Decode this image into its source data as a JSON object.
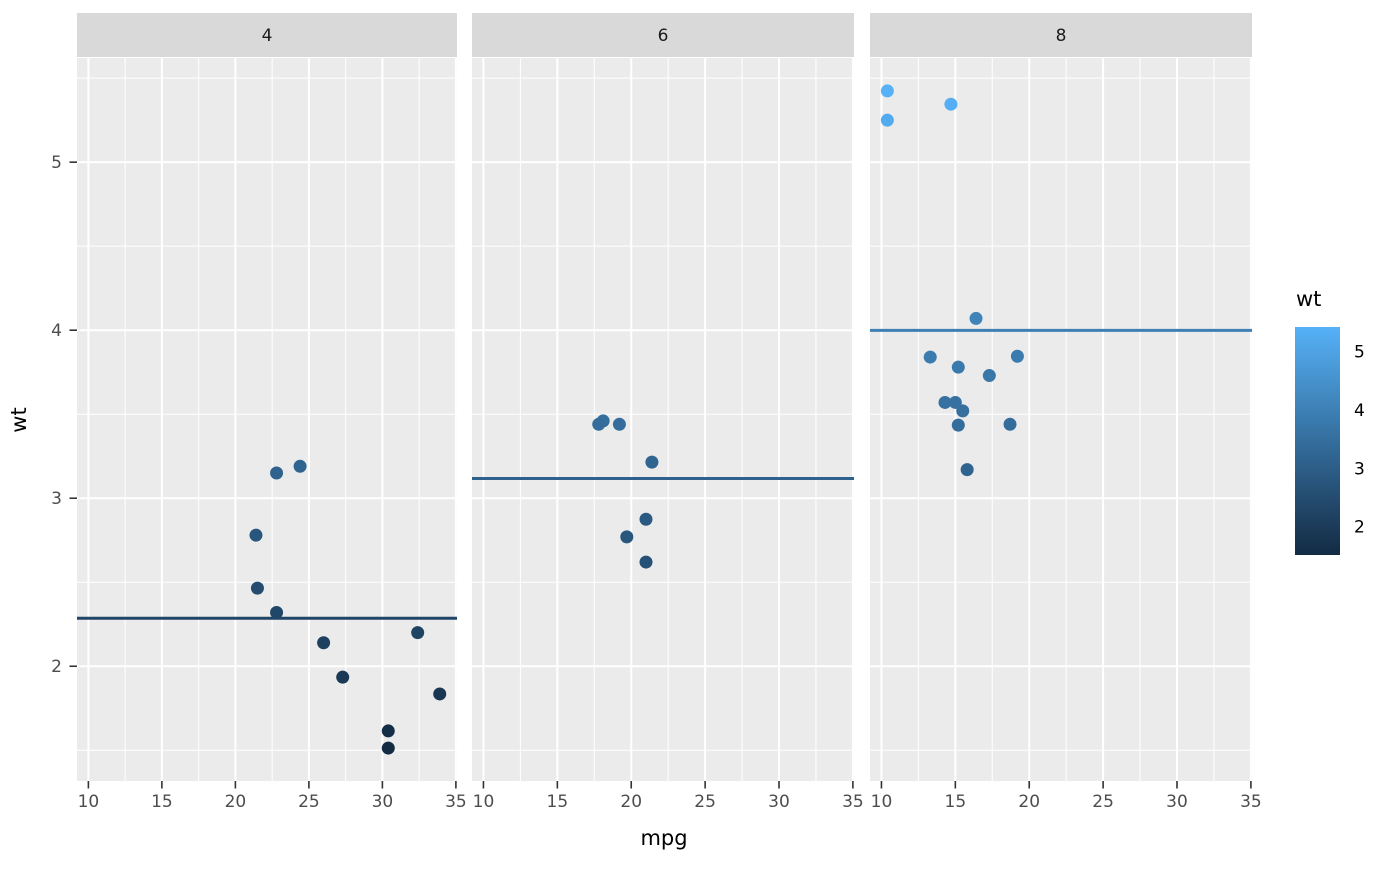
{
  "chart_data": {
    "type": "scatter",
    "title": "",
    "xlabel": "mpg",
    "ylabel": "wt",
    "x_range": [
      9.225,
      35.075
    ],
    "y_range": [
      1.317,
      5.62
    ],
    "x_ticks": [
      10,
      15,
      20,
      25,
      30,
      35
    ],
    "y_ticks": [
      2,
      3,
      4,
      5
    ],
    "x_minor_ticks": [
      12.5,
      17.5,
      22.5,
      27.5,
      32.5
    ],
    "y_minor_ticks": [
      1.5,
      2.5,
      3.5,
      4.5,
      5.5
    ],
    "grid": true,
    "facet_variable_values": [
      "4",
      "6",
      "8"
    ],
    "facets": [
      {
        "label": "4",
        "mean_line_y": 2.2857,
        "points": [
          [
            22.8,
            2.32
          ],
          [
            24.4,
            3.19
          ],
          [
            22.8,
            3.15
          ],
          [
            32.4,
            2.2
          ],
          [
            30.4,
            1.615
          ],
          [
            33.9,
            1.835
          ],
          [
            21.5,
            2.465
          ],
          [
            27.3,
            1.935
          ],
          [
            26.0,
            2.14
          ],
          [
            30.4,
            1.513
          ],
          [
            21.4,
            2.78
          ]
        ]
      },
      {
        "label": "6",
        "mean_line_y": 3.1171,
        "points": [
          [
            21.0,
            2.62
          ],
          [
            21.0,
            2.875
          ],
          [
            21.4,
            3.215
          ],
          [
            18.1,
            3.46
          ],
          [
            19.2,
            3.44
          ],
          [
            17.8,
            3.44
          ],
          [
            19.7,
            2.77
          ]
        ]
      },
      {
        "label": "8",
        "mean_line_y": 3.9992,
        "points": [
          [
            18.7,
            3.44
          ],
          [
            14.3,
            3.57
          ],
          [
            16.4,
            4.07
          ],
          [
            17.3,
            3.73
          ],
          [
            15.2,
            3.78
          ],
          [
            10.4,
            5.25
          ],
          [
            10.4,
            5.424
          ],
          [
            14.7,
            5.345
          ],
          [
            15.5,
            3.52
          ],
          [
            15.2,
            3.435
          ],
          [
            13.3,
            3.84
          ],
          [
            19.2,
            3.845
          ],
          [
            15.8,
            3.17
          ],
          [
            15.0,
            3.57
          ]
        ]
      }
    ],
    "legend": {
      "title": "wt",
      "position": "right",
      "ticks": [
        5,
        4,
        3,
        2
      ],
      "domain": [
        1.513,
        5.424
      ],
      "gradient_low": "#132B43",
      "gradient_high": "#56B1F7"
    },
    "theme": {
      "panel_background": "#EBEBEB",
      "strip_background": "#D9D9D9",
      "strip_text_color": "#1A1A1A",
      "grid_color": "#FFFFFF",
      "axis_text_color": "#4D4D4D",
      "axis_title_color": "#000000",
      "tick_mark_color": "#333333",
      "legend_text_color": "#000000",
      "mean_line_colors": [
        "#1C4060",
        "#2E5F89",
        "#3E7DB4"
      ]
    }
  }
}
